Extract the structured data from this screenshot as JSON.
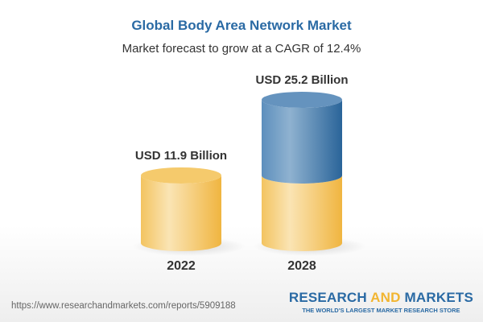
{
  "title": "Global Body Area Network Market",
  "subtitle": "Market forecast to grow at a CAGR of 12.4%",
  "source_url": "https://www.researchandmarkets.com/reports/5909188",
  "logo": {
    "part1": "RESEARCH ",
    "part2": "AND",
    "part3": " MARKETS",
    "tagline": "THE WORLD'S LARGEST MARKET RESEARCH STORE"
  },
  "colors": {
    "base": "#f2c050",
    "growth": "#3f7cb0",
    "title": "#2a6aa4"
  },
  "chart_data": {
    "type": "bar",
    "style": "3d-cylinder",
    "title": "Global Body Area Network Market",
    "subtitle": "Market forecast to grow at a CAGR of 12.4%",
    "categories": [
      "2022",
      "2028"
    ],
    "values": [
      11.9,
      25.2
    ],
    "data_labels": [
      "USD 11.9 Billion",
      "USD 25.2 Billion"
    ],
    "unit": "USD Billion",
    "cagr": "12.4%",
    "grid": false,
    "legend": "none"
  }
}
